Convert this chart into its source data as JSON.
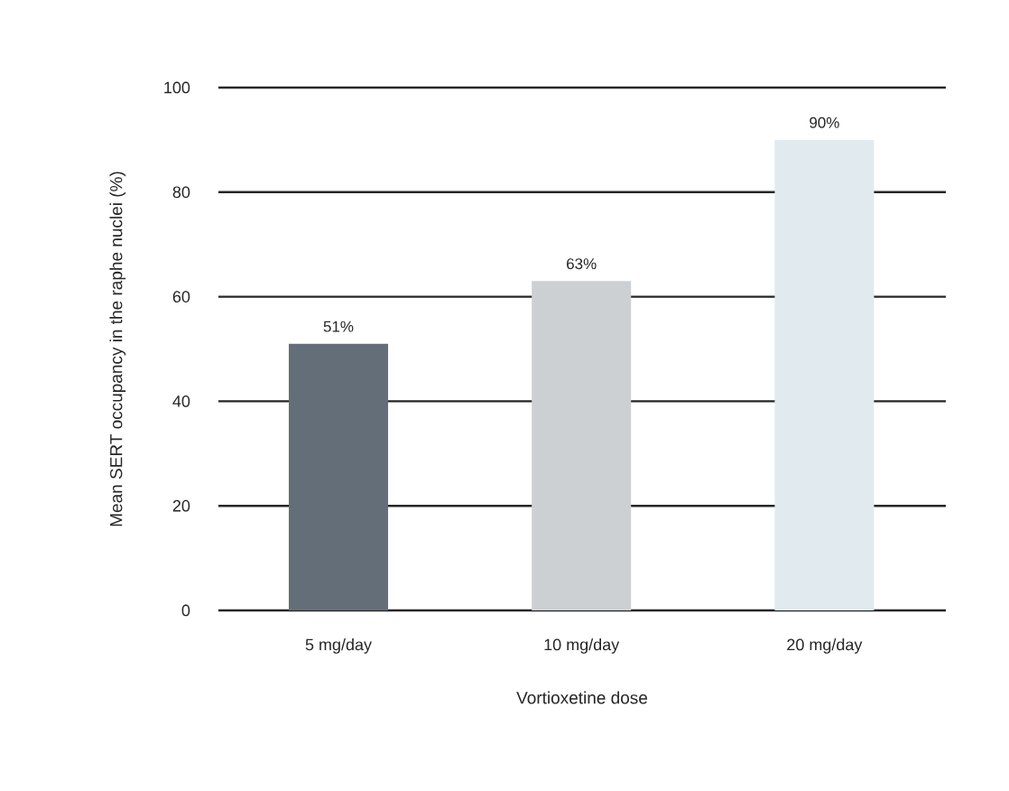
{
  "chart_data": {
    "type": "bar",
    "xlabel": "Vortioxetine dose",
    "ylabel": "Mean SERT occupancy in the raphe nuclei (%)",
    "categories": [
      "5 mg/day",
      "10 mg/day",
      "20 mg/day"
    ],
    "values": [
      51,
      63,
      90
    ],
    "colors": [
      "#646e78",
      "#cdd0d3",
      "#e1eaee"
    ],
    "value_labels": [
      "51%",
      "63%",
      "90%"
    ],
    "ylim": [
      0,
      100
    ],
    "yticks": [
      0,
      20,
      40,
      60,
      80,
      100
    ],
    "grid": "y"
  }
}
